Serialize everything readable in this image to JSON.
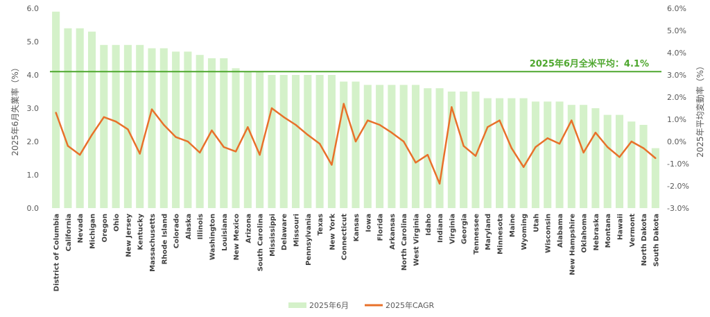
{
  "chart_data": {
    "type": "bar+line",
    "categories": [
      "District of Columbia",
      "California",
      "Nevada",
      "Michigan",
      "Oregon",
      "Ohio",
      "New Jersey",
      "Kentucky",
      "Massachusetts",
      "Rhode Island",
      "Colorado",
      "Alaska",
      "Illinois",
      "Washington",
      "Louisiana",
      "New Mexico",
      "Arizona",
      "South Carolina",
      "Mississippi",
      "Delaware",
      "Missouri",
      "Pennsylvania",
      "Texas",
      "New York",
      "Connecticut",
      "Kansas",
      "Iowa",
      "Florida",
      "Arkansas",
      "North Carolina",
      "West Virginia",
      "Idaho",
      "Indiana",
      "Virginia",
      "Georgia",
      "Tennessee",
      "Maryland",
      "Minnesota",
      "Maine",
      "Wyoming",
      "Utah",
      "Wisconsin",
      "Alabama",
      "New Hampshire",
      "Oklahoma",
      "Nebraska",
      "Montana",
      "Hawaii",
      "Vermont",
      "North Dakota",
      "South Dakota"
    ],
    "series": [
      {
        "name": "2025年6月",
        "type": "bar",
        "axis": "left",
        "color": "#d4f1c9",
        "values": [
          5.9,
          5.4,
          5.4,
          5.3,
          4.9,
          4.9,
          4.9,
          4.9,
          4.8,
          4.8,
          4.7,
          4.7,
          4.6,
          4.5,
          4.5,
          4.2,
          4.1,
          4.1,
          4.0,
          4.0,
          4.0,
          4.0,
          4.0,
          4.0,
          3.8,
          3.8,
          3.7,
          3.7,
          3.7,
          3.7,
          3.7,
          3.6,
          3.6,
          3.5,
          3.5,
          3.5,
          3.3,
          3.3,
          3.3,
          3.3,
          3.2,
          3.2,
          3.2,
          3.1,
          3.1,
          3.0,
          2.8,
          2.8,
          2.6,
          2.5,
          1.8
        ]
      },
      {
        "name": "2025年CAGR",
        "type": "line",
        "axis": "right",
        "color": "#e8712a",
        "values": [
          1.3,
          -0.2,
          -0.6,
          0.3,
          1.1,
          0.9,
          0.55,
          -0.55,
          1.45,
          0.75,
          0.2,
          0.0,
          -0.5,
          0.5,
          -0.25,
          -0.45,
          0.65,
          -0.6,
          1.5,
          1.1,
          0.75,
          0.3,
          -0.1,
          -1.05,
          1.7,
          0.0,
          0.95,
          0.75,
          0.4,
          0.0,
          -0.95,
          -0.6,
          -1.9,
          1.55,
          -0.2,
          -0.65,
          0.65,
          0.95,
          -0.3,
          -1.15,
          -0.25,
          0.15,
          -0.1,
          0.95,
          -0.5,
          0.4,
          -0.25,
          -0.7,
          0.0,
          -0.3,
          -0.75
        ]
      }
    ],
    "reference_line": {
      "value": 4.1,
      "axis": "left",
      "label": "2025年6月全米平均：4.1%",
      "color": "#4ea72e"
    },
    "ylabel": "2025年6月失業率（%）",
    "y2label": "2025年平均変動率（%）",
    "ylim": [
      0,
      6
    ],
    "y2lim": [
      -3,
      6
    ],
    "yticks": [
      "0.0",
      "1.0",
      "2.0",
      "3.0",
      "4.0",
      "5.0",
      "6.0"
    ],
    "y2ticks": [
      "-3.0%",
      "-2.0%",
      "-1.0%",
      "0.0%",
      "1.0%",
      "2.0%",
      "3.0%",
      "4.0%",
      "5.0%",
      "6.0%"
    ],
    "grid": false,
    "legend_position": "bottom"
  }
}
